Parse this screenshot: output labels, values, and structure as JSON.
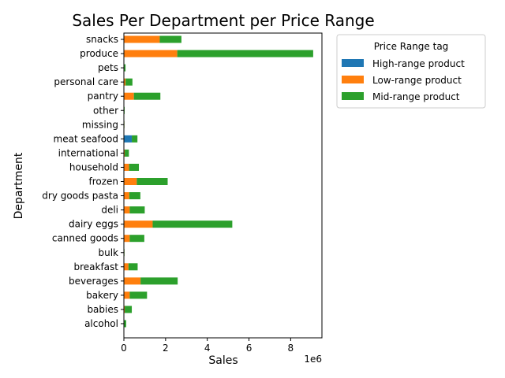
{
  "chart_data": {
    "type": "bar",
    "orientation": "horizontal",
    "stacked": true,
    "title": "Sales Per Department per Price Range",
    "xlabel": "Sales",
    "ylabel": "Department",
    "x_scale_label": "1e6",
    "xlim": [
      0,
      9500000
    ],
    "x_ticks": [
      0,
      2000000,
      4000000,
      6000000,
      8000000
    ],
    "x_tick_labels": [
      "0",
      "2",
      "4",
      "6",
      "8"
    ],
    "grid": false,
    "legend": {
      "title": "Price Range tag",
      "placement": "outside-top-right"
    },
    "categories": [
      "alcohol",
      "babies",
      "bakery",
      "beverages",
      "breakfast",
      "bulk",
      "canned goods",
      "dairy eggs",
      "deli",
      "dry goods pasta",
      "frozen",
      "household",
      "international",
      "meat seafood",
      "missing",
      "other",
      "pantry",
      "personal care",
      "pets",
      "produce",
      "snacks"
    ],
    "series": [
      {
        "name": "High-range product",
        "color": "#1f77b4",
        "values": [
          0,
          0,
          0,
          0,
          0,
          0,
          0,
          0,
          0,
          0,
          0,
          0,
          0,
          380000,
          0,
          0,
          0,
          0,
          0,
          0,
          0
        ]
      },
      {
        "name": "Low-range product",
        "color": "#ff7f0e",
        "values": [
          10000,
          40000,
          280000,
          800000,
          220000,
          5000,
          280000,
          1380000,
          280000,
          260000,
          620000,
          250000,
          40000,
          0,
          2000,
          5000,
          480000,
          80000,
          20000,
          2560000,
          1720000
        ]
      },
      {
        "name": "Mid-range product",
        "color": "#2ca02c",
        "values": [
          100000,
          340000,
          830000,
          1780000,
          440000,
          20000,
          700000,
          3820000,
          720000,
          530000,
          1480000,
          470000,
          200000,
          270000,
          20000,
          30000,
          1270000,
          330000,
          60000,
          6520000,
          1040000
        ]
      }
    ]
  }
}
